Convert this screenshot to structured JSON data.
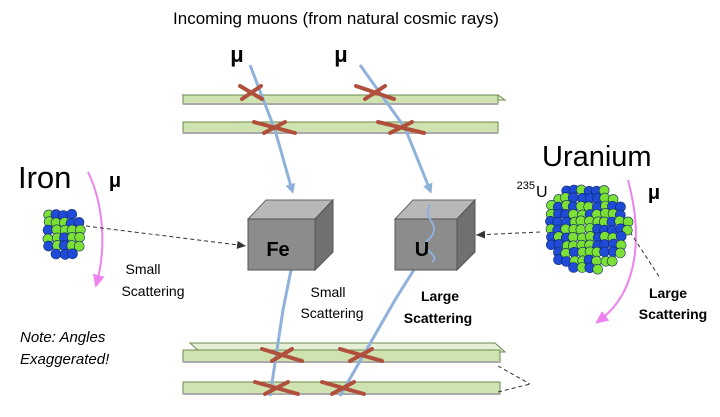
{
  "title": "Incoming muons (from natural cosmic rays)",
  "muon_symbol": "μ",
  "iron": {
    "label": "Iron",
    "muon_symbol": "μ",
    "scatter_label_1": "Small",
    "scatter_label_2": "Scattering"
  },
  "uranium": {
    "label": "Uranium",
    "isotope_mass": "235",
    "isotope_symbol": "U",
    "muon_symbol": "μ",
    "scatter_label_1": "Large",
    "scatter_label_2": "Scattering"
  },
  "blocks": {
    "fe_label": "Fe",
    "u_label": "U"
  },
  "track_labels": {
    "fe_1": "Small",
    "fe_2": "Scattering",
    "u_1": "Large",
    "u_2": "Scattering"
  },
  "note": {
    "line1": "Note: Angles",
    "line2": "Exaggerated!"
  },
  "colors": {
    "plate_fill": "#cfe3b1",
    "plate_stroke": "#6b8a4e",
    "track": "#8fb2dc",
    "cross": "#b0503c",
    "block_front": "#8c8c8c",
    "block_top": "#b8b8b8",
    "block_side": "#707070",
    "arrow_pink": "#ee82ee",
    "atom_green": "#7de034",
    "atom_blue": "#1f4bd6"
  }
}
